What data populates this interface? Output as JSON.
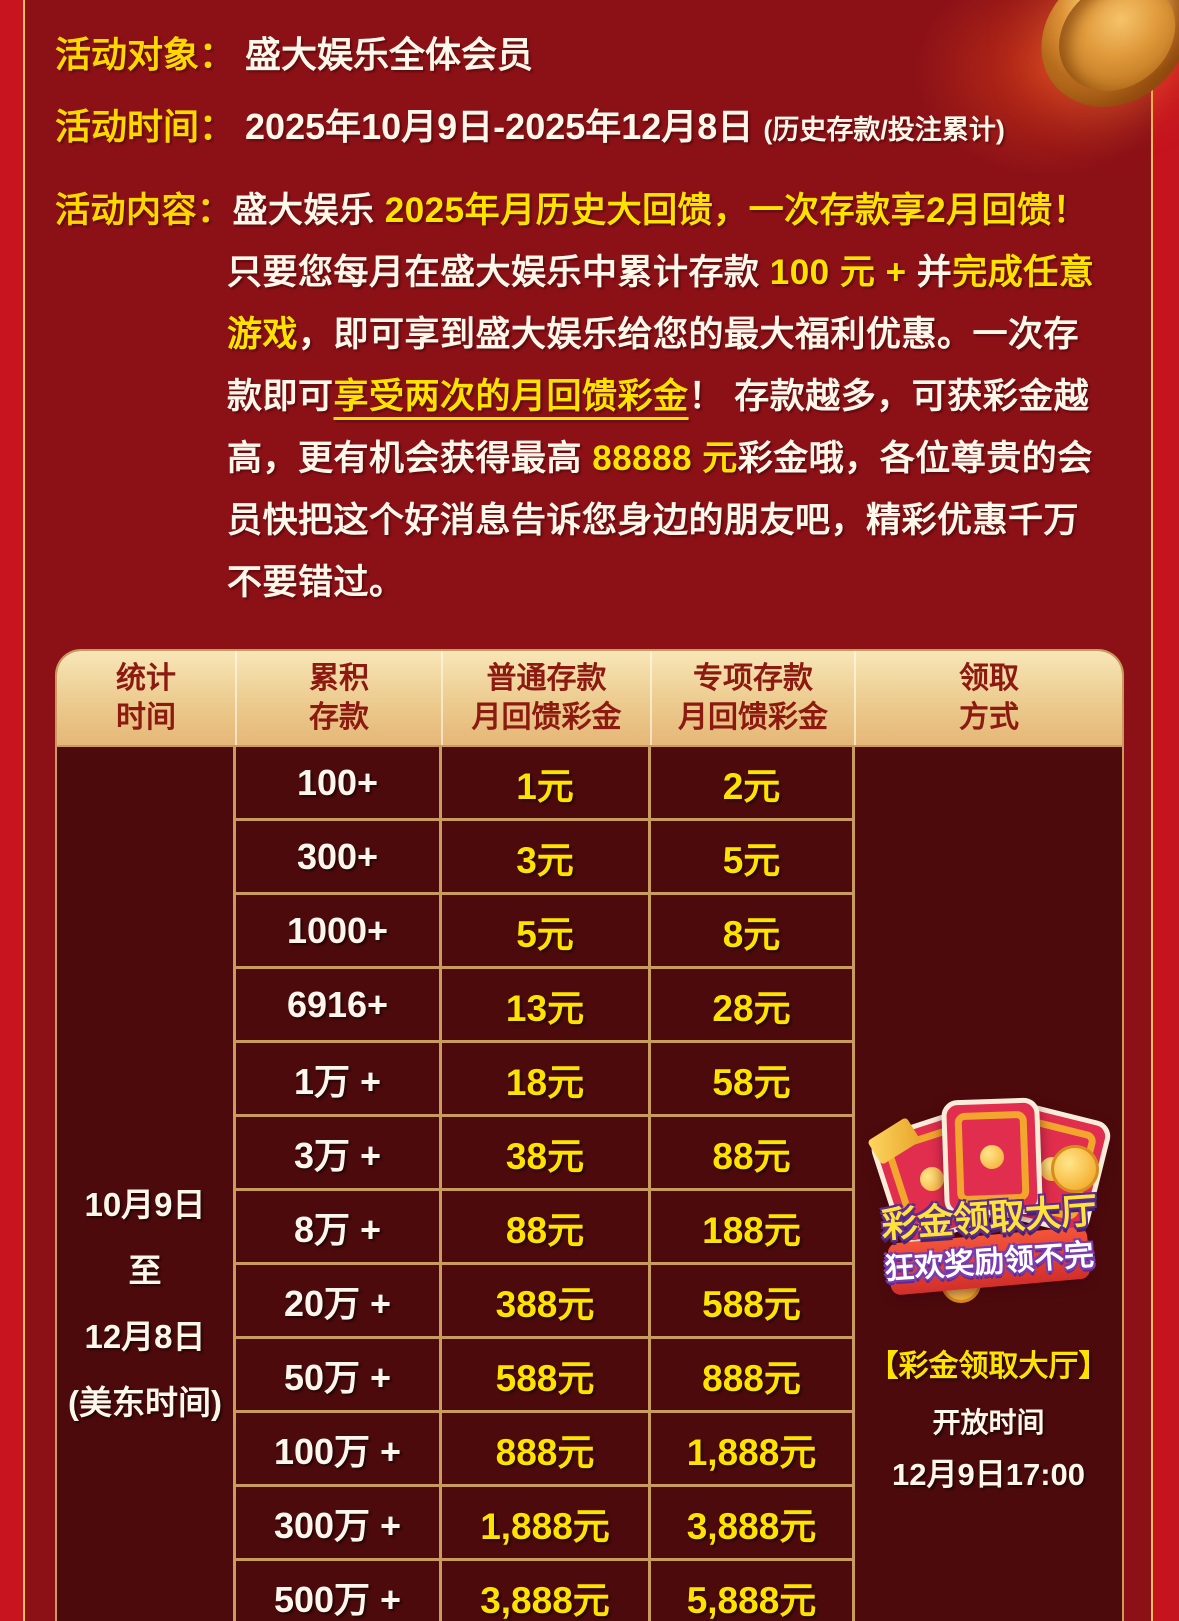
{
  "colors": {
    "outer_red": "#c8141f",
    "panel_red": "#8c1117",
    "gold_border": "#edbc63",
    "table_grid_gold": "#c99c5e",
    "cell_maroon": "#4c0a0c",
    "header_cream": "#eccb8e",
    "header_text_red": "#8c1a10",
    "label_yellow": "#ffd800",
    "accent_yellow": "#ffe300",
    "text_white": "#fff7ea"
  },
  "info": {
    "target_label": "活动对象：",
    "target_value": "盛大娱乐全体会员",
    "time_label": "活动时间：",
    "time_value": "2025年10月9日-2025年12月8日",
    "time_note": "(历史存款/投注累计)",
    "content_label": "活动内容："
  },
  "content": {
    "segments": [
      {
        "style": "white",
        "text": "盛大娱乐 "
      },
      {
        "style": "yellow",
        "text": "2025年月历史大回馈，一次存款享2月回馈！"
      },
      {
        "style": "white",
        "text": "只要您每月在盛大娱乐中累计存款 "
      },
      {
        "style": "yellow",
        "text": "100 元 +"
      },
      {
        "style": "white",
        "text": " 并"
      },
      {
        "style": "yellow",
        "text": "完成任意游戏"
      },
      {
        "style": "white",
        "text": "，即可享到盛大娱乐给您的最大福利优惠。一次存款即可"
      },
      {
        "style": "yellow-u",
        "text": "享受两次的月回馈彩金"
      },
      {
        "style": "white",
        "text": "！ 存款越多，可获彩金越高，更有机会获得最高 "
      },
      {
        "style": "yellow",
        "text": "88888 元"
      },
      {
        "style": "white",
        "text": "彩金哦，各位尊贵的会员快把这个好消息告诉您身边的朋友吧，精彩优惠千万不要错过。"
      }
    ]
  },
  "table": {
    "headers": [
      {
        "line1": "统计",
        "line2": "时间"
      },
      {
        "line1": "累积",
        "line2": "存款"
      },
      {
        "line1": "普通存款",
        "line2": "月回馈彩金"
      },
      {
        "line1": "专项存款",
        "line2": "月回馈彩金"
      },
      {
        "line1": "领取",
        "line2": "方式"
      }
    ],
    "stat_period_lines": [
      "10月9日",
      "至",
      "12月8日",
      "(美东时间)"
    ],
    "rows": [
      {
        "deposit": "100+",
        "normal": "1元",
        "special": "2元"
      },
      {
        "deposit": "300+",
        "normal": "3元",
        "special": "5元"
      },
      {
        "deposit": "1000+",
        "normal": "5元",
        "special": "8元"
      },
      {
        "deposit": "6916+",
        "normal": "13元",
        "special": "28元"
      },
      {
        "deposit": "1万 +",
        "normal": "18元",
        "special": "58元"
      },
      {
        "deposit": "3万 +",
        "normal": "38元",
        "special": "88元"
      },
      {
        "deposit": "8万 +",
        "normal": "88元",
        "special": "188元"
      },
      {
        "deposit": "20万 +",
        "normal": "388元",
        "special": "588元"
      },
      {
        "deposit": "50万 +",
        "normal": "588元",
        "special": "888元"
      },
      {
        "deposit": "100万 +",
        "normal": "888元",
        "special": "1,888元"
      },
      {
        "deposit": "300万 +",
        "normal": "1,888元",
        "special": "3,888元"
      },
      {
        "deposit": "500万 +",
        "normal": "3,888元",
        "special": "5,888元"
      }
    ],
    "claim": {
      "badge_title": "彩金领取大厅",
      "badge_subtitle": "狂欢奖励领不完",
      "hall_name": "【彩金领取大厅】",
      "open_label": "开放时间",
      "open_time": "12月9日17:00"
    }
  }
}
